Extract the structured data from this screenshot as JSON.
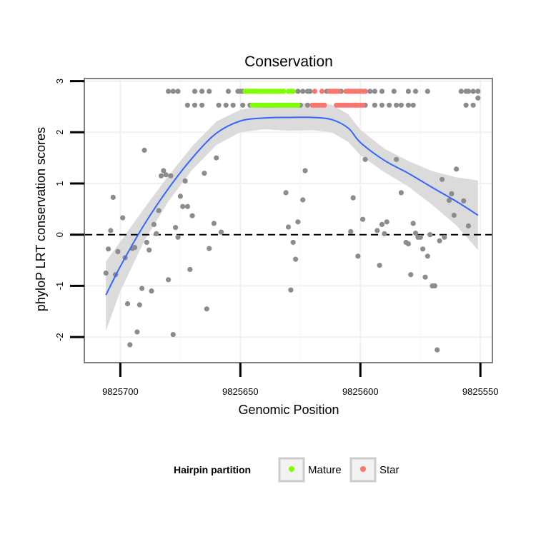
{
  "chart_data": {
    "type": "scatter",
    "title": "Conservation",
    "xlabel": "Genomic Position",
    "ylabel": "phyloP LRT conservation scores",
    "x_reversed": true,
    "xlim": [
      9825715,
      9825545
    ],
    "ylim": [
      -2.5,
      3.05
    ],
    "x_ticks": [
      9825700,
      9825650,
      9825600,
      9825550
    ],
    "x_tick_labels": [
      "9825700",
      "9825650",
      "9825600",
      "9825550"
    ],
    "y_ticks": [
      -2,
      -1,
      0,
      1,
      2,
      3
    ],
    "y_tick_labels": [
      "-2",
      "-1",
      "0",
      "1",
      "2",
      "3"
    ],
    "reference_line": {
      "y": 0,
      "style": "dashed"
    },
    "legend": {
      "title": "Hairpin partition",
      "position": "bottom",
      "entries": [
        {
          "label": "Mature",
          "color": "#7fff00"
        },
        {
          "label": "Star",
          "color": "#f8766d"
        }
      ]
    },
    "colors": {
      "point": "#8c8c8c",
      "mature": "#7fff00",
      "star": "#f8766d",
      "smooth": "#3366ff",
      "band": "#d9d9d9"
    },
    "series": [
      {
        "group": "other",
        "points": [
          [
            9825706,
            -0.75
          ],
          [
            9825705,
            -0.28
          ],
          [
            9825704,
            0.08
          ],
          [
            9825703,
            0.73
          ],
          [
            9825702,
            -0.78
          ],
          [
            9825701,
            -0.33
          ],
          [
            9825699,
            0.33
          ],
          [
            9825698,
            -0.45
          ],
          [
            9825697,
            -1.35
          ],
          [
            9825696,
            -2.15
          ],
          [
            9825695,
            -0.27
          ],
          [
            9825694,
            -0.25
          ],
          [
            9825693,
            -1.9
          ],
          [
            9825692,
            -1.37
          ],
          [
            9825691,
            -1.05
          ],
          [
            9825690,
            1.65
          ],
          [
            9825689,
            -0.15
          ],
          [
            9825688,
            -0.3
          ],
          [
            9825687,
            -1.1
          ],
          [
            9825686,
            0.2
          ],
          [
            9825685,
            0.02
          ],
          [
            9825684,
            0.47
          ],
          [
            9825683,
            1.15
          ],
          [
            9825682,
            1.25
          ],
          [
            9825681,
            1.17
          ],
          [
            9825680,
            -0.88
          ],
          [
            9825679,
            1.15
          ],
          [
            9825678,
            -1.95
          ],
          [
            9825677,
            0.14
          ],
          [
            9825676,
            -0.05
          ],
          [
            9825675,
            0.75
          ],
          [
            9825674,
            0.55
          ],
          [
            9825673,
            1.05
          ],
          [
            9825672,
            0.55
          ],
          [
            9825671,
            -0.68
          ],
          [
            9825670,
            0.37
          ],
          [
            9825665,
            1.2
          ],
          [
            9825664,
            -1.45
          ],
          [
            9825663,
            -0.27
          ],
          [
            9825661,
            0.22
          ],
          [
            9825660,
            1.5
          ],
          [
            9825658,
            0.05
          ],
          [
            9825631,
            0.82
          ],
          [
            9825630,
            0.15
          ],
          [
            9825629,
            -1.08
          ],
          [
            9825628,
            -0.15
          ],
          [
            9825627,
            -0.48
          ],
          [
            9825626,
            0.25
          ],
          [
            9825624,
            0.68
          ],
          [
            9825623,
            1.25
          ],
          [
            9825604,
            0.06
          ],
          [
            9825603,
            0.72
          ],
          [
            9825601,
            -0.42
          ],
          [
            9825599,
            0.3
          ],
          [
            9825598,
            1.47
          ],
          [
            9825593,
            0.08
          ],
          [
            9825592,
            -0.6
          ],
          [
            9825591,
            0.2
          ],
          [
            9825590,
            0.02
          ],
          [
            9825589,
            0.25
          ],
          [
            9825585,
            1.47
          ],
          [
            9825583,
            0.82
          ],
          [
            9825581,
            -0.15
          ],
          [
            9825580,
            -0.18
          ],
          [
            9825579,
            -0.78
          ],
          [
            9825578,
            0.22
          ],
          [
            9825577,
            0.03
          ],
          [
            9825576,
            -0.05
          ],
          [
            9825575,
            -0.05
          ],
          [
            9825574,
            -0.28
          ],
          [
            9825573,
            -0.83
          ],
          [
            9825572,
            -0.42
          ],
          [
            9825571,
            0.0
          ],
          [
            9825570,
            -1.0
          ],
          [
            9825569,
            -1.0
          ],
          [
            9825568,
            -2.25
          ],
          [
            9825567,
            -0.12
          ],
          [
            9825566,
            1.08
          ],
          [
            9825565,
            -0.05
          ],
          [
            9825563,
            0.67
          ],
          [
            9825562,
            0.8
          ],
          [
            9825561,
            0.38
          ],
          [
            9825560,
            1.28
          ],
          [
            9825557,
            0.66
          ],
          [
            9825555,
            0.17
          ],
          [
            9825551,
            2.67
          ]
        ]
      },
      {
        "group": "other",
        "points": [
          [
            9825680,
            2.8
          ],
          [
            9825678,
            2.8
          ],
          [
            9825676,
            2.8
          ],
          [
            9825669,
            2.8
          ],
          [
            9825666,
            2.8
          ],
          [
            9825663,
            2.8
          ],
          [
            9825655,
            2.8
          ],
          [
            9825651,
            2.8
          ],
          [
            9825650,
            2.8
          ],
          [
            9825649,
            2.8
          ],
          [
            9825646,
            2.8
          ],
          [
            9825643,
            2.8
          ],
          [
            9825626,
            2.8
          ],
          [
            9825624,
            2.8
          ],
          [
            9825622,
            2.8
          ],
          [
            9825621,
            2.8
          ],
          [
            9825614,
            2.8
          ],
          [
            9825611,
            2.8
          ],
          [
            9825608,
            2.8
          ],
          [
            9825605,
            2.8
          ],
          [
            9825598,
            2.8
          ],
          [
            9825596,
            2.8
          ],
          [
            9825594,
            2.8
          ],
          [
            9825591,
            2.8
          ],
          [
            9825586,
            2.8
          ],
          [
            9825580,
            2.8
          ],
          [
            9825577,
            2.8
          ],
          [
            9825572,
            2.8
          ],
          [
            9825558,
            2.8
          ],
          [
            9825556,
            2.8
          ],
          [
            9825555,
            2.8
          ],
          [
            9825553,
            2.8
          ],
          [
            9825551,
            2.8
          ],
          [
            9825672,
            2.53
          ],
          [
            9825669,
            2.53
          ],
          [
            9825666,
            2.53
          ],
          [
            9825659,
            2.53
          ],
          [
            9825656,
            2.53
          ],
          [
            9825653,
            2.53
          ],
          [
            9825649,
            2.53
          ],
          [
            9825646,
            2.53
          ],
          [
            9825643,
            2.53
          ],
          [
            9825640,
            2.53
          ],
          [
            9825637,
            2.53
          ],
          [
            9825634,
            2.53
          ],
          [
            9825631,
            2.53
          ],
          [
            9825628,
            2.53
          ],
          [
            9825625,
            2.53
          ],
          [
            9825622,
            2.53
          ],
          [
            9825602,
            2.53
          ],
          [
            9825598,
            2.53
          ],
          [
            9825594,
            2.53
          ],
          [
            9825591,
            2.53
          ],
          [
            9825588,
            2.53
          ],
          [
            9825585,
            2.53
          ],
          [
            9825583,
            2.53
          ],
          [
            9825580,
            2.53
          ],
          [
            9825578,
            2.53
          ],
          [
            9825556,
            2.53
          ],
          [
            9825553,
            2.53
          ]
        ]
      },
      {
        "group": "mature",
        "points": [
          [
            9825648,
            2.8
          ],
          [
            9825647,
            2.8
          ],
          [
            9825646,
            2.8
          ],
          [
            9825645,
            2.8
          ],
          [
            9825644,
            2.8
          ],
          [
            9825643,
            2.8
          ],
          [
            9825642,
            2.8
          ],
          [
            9825641,
            2.8
          ],
          [
            9825640,
            2.8
          ],
          [
            9825639,
            2.8
          ],
          [
            9825638,
            2.8
          ],
          [
            9825637,
            2.8
          ],
          [
            9825636,
            2.8
          ],
          [
            9825635,
            2.8
          ],
          [
            9825634,
            2.8
          ],
          [
            9825633,
            2.8
          ],
          [
            9825632,
            2.8
          ],
          [
            9825630,
            2.8
          ],
          [
            9825629,
            2.8
          ],
          [
            9825628,
            2.8
          ],
          [
            9825645,
            2.53
          ],
          [
            9825644,
            2.53
          ],
          [
            9825643,
            2.53
          ],
          [
            9825642,
            2.53
          ],
          [
            9825641,
            2.53
          ],
          [
            9825640,
            2.53
          ],
          [
            9825639,
            2.53
          ],
          [
            9825638,
            2.53
          ],
          [
            9825637,
            2.53
          ],
          [
            9825636,
            2.53
          ],
          [
            9825635,
            2.53
          ],
          [
            9825634,
            2.53
          ],
          [
            9825633,
            2.53
          ],
          [
            9825632,
            2.53
          ],
          [
            9825631,
            2.53
          ],
          [
            9825630,
            2.53
          ],
          [
            9825629,
            2.53
          ],
          [
            9825628,
            2.53
          ],
          [
            9825627,
            2.53
          ],
          [
            9825626,
            2.53
          ]
        ]
      },
      {
        "group": "star",
        "points": [
          [
            9825619,
            2.8
          ],
          [
            9825616,
            2.8
          ],
          [
            9825613,
            2.8
          ],
          [
            9825612,
            2.8
          ],
          [
            9825611,
            2.8
          ],
          [
            9825610,
            2.8
          ],
          [
            9825609,
            2.8
          ],
          [
            9825606,
            2.8
          ],
          [
            9825605,
            2.8
          ],
          [
            9825604,
            2.8
          ],
          [
            9825603,
            2.8
          ],
          [
            9825602,
            2.8
          ],
          [
            9825601,
            2.8
          ],
          [
            9825600,
            2.8
          ],
          [
            9825599,
            2.8
          ],
          [
            9825598,
            2.8
          ],
          [
            9825620,
            2.53
          ],
          [
            9825619,
            2.53
          ],
          [
            9825618,
            2.53
          ],
          [
            9825617,
            2.53
          ],
          [
            9825616,
            2.53
          ],
          [
            9825615,
            2.53
          ],
          [
            9825610,
            2.53
          ],
          [
            9825609,
            2.53
          ],
          [
            9825608,
            2.53
          ],
          [
            9825607,
            2.53
          ],
          [
            9825606,
            2.53
          ],
          [
            9825605,
            2.53
          ],
          [
            9825604,
            2.53
          ],
          [
            9825603,
            2.53
          ],
          [
            9825602,
            2.53
          ],
          [
            9825601,
            2.53
          ],
          [
            9825600,
            2.53
          ],
          [
            9825599,
            2.53
          ]
        ]
      }
    ],
    "smooth": [
      [
        9825706,
        -1.18
      ],
      [
        9825700,
        -0.62
      ],
      [
        9825690,
        0.2
      ],
      [
        9825680,
        0.9
      ],
      [
        9825670,
        1.5
      ],
      [
        9825660,
        1.98
      ],
      [
        9825650,
        2.22
      ],
      [
        9825640,
        2.28
      ],
      [
        9825630,
        2.29
      ],
      [
        9825620,
        2.29
      ],
      [
        9825612,
        2.25
      ],
      [
        9825605,
        2.08
      ],
      [
        9825600,
        1.8
      ],
      [
        9825590,
        1.45
      ],
      [
        9825580,
        1.2
      ],
      [
        9825570,
        0.92
      ],
      [
        9825560,
        0.65
      ],
      [
        9825551,
        0.38
      ]
    ],
    "smooth_band": [
      [
        9825706,
        -1.88,
        -0.52
      ],
      [
        9825700,
        -1.1,
        -0.14
      ],
      [
        9825690,
        -0.12,
        0.52
      ],
      [
        9825680,
        0.65,
        1.15
      ],
      [
        9825670,
        1.27,
        1.73
      ],
      [
        9825660,
        1.75,
        2.21
      ],
      [
        9825650,
        2.0,
        2.44
      ],
      [
        9825640,
        2.06,
        2.52
      ],
      [
        9825630,
        2.03,
        2.57
      ],
      [
        9825620,
        2.04,
        2.57
      ],
      [
        9825612,
        2.0,
        2.54
      ],
      [
        9825605,
        1.81,
        2.35
      ],
      [
        9825600,
        1.55,
        2.05
      ],
      [
        9825590,
        1.22,
        1.68
      ],
      [
        9825580,
        0.94,
        1.44
      ],
      [
        9825570,
        0.58,
        1.24
      ],
      [
        9825560,
        0.18,
        1.12
      ],
      [
        9825551,
        -0.3,
        1.06
      ]
    ]
  }
}
